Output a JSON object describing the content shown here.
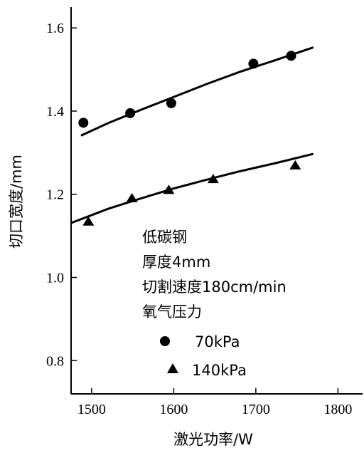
{
  "chart_data": {
    "type": "scatter",
    "xlabel": "激光功率/W",
    "ylabel": "切口宽度/mm",
    "xlim": [
      1475,
      1830
    ],
    "ylim": [
      0.72,
      1.65
    ],
    "xticks": [
      1500,
      1600,
      1700,
      1800
    ],
    "xtick_labels": [
      "1500",
      "1600",
      "1700",
      "1800"
    ],
    "yticks": [
      0.8,
      1.0,
      1.2,
      1.4,
      1.6
    ],
    "ytick_labels": [
      "0.8",
      "1.0",
      "1.2",
      "1.4",
      "1.6"
    ],
    "grid": false,
    "annotation_lines": [
      "低碳钢",
      "厚度4mm",
      "切割速度180cm/min",
      "氧气压力"
    ],
    "legend": {
      "position": "inside-lower-center",
      "entries": [
        {
          "label": "70kPa",
          "marker": "circle"
        },
        {
          "label": "140kPa",
          "marker": "triangle"
        }
      ]
    },
    "series": [
      {
        "name": "70kPa",
        "marker": "circle",
        "x": [
          1490,
          1547,
          1597,
          1697,
          1743
        ],
        "y": [
          1.372,
          1.395,
          1.419,
          1.514,
          1.533
        ],
        "fit": {
          "x": [
            1487,
            1520,
            1560,
            1600,
            1640,
            1680,
            1720,
            1770
          ],
          "y": [
            1.341,
            1.371,
            1.403,
            1.434,
            1.465,
            1.494,
            1.52,
            1.553
          ]
        }
      },
      {
        "name": "140kPa",
        "marker": "triangle",
        "x": [
          1496,
          1549,
          1594,
          1648,
          1748
        ],
        "y": [
          1.135,
          1.191,
          1.211,
          1.237,
          1.27
        ],
        "fit": {
          "x": [
            1475,
            1520,
            1560,
            1600,
            1640,
            1680,
            1720,
            1770
          ],
          "y": [
            1.131,
            1.165,
            1.19,
            1.214,
            1.235,
            1.255,
            1.273,
            1.297
          ]
        }
      }
    ]
  }
}
